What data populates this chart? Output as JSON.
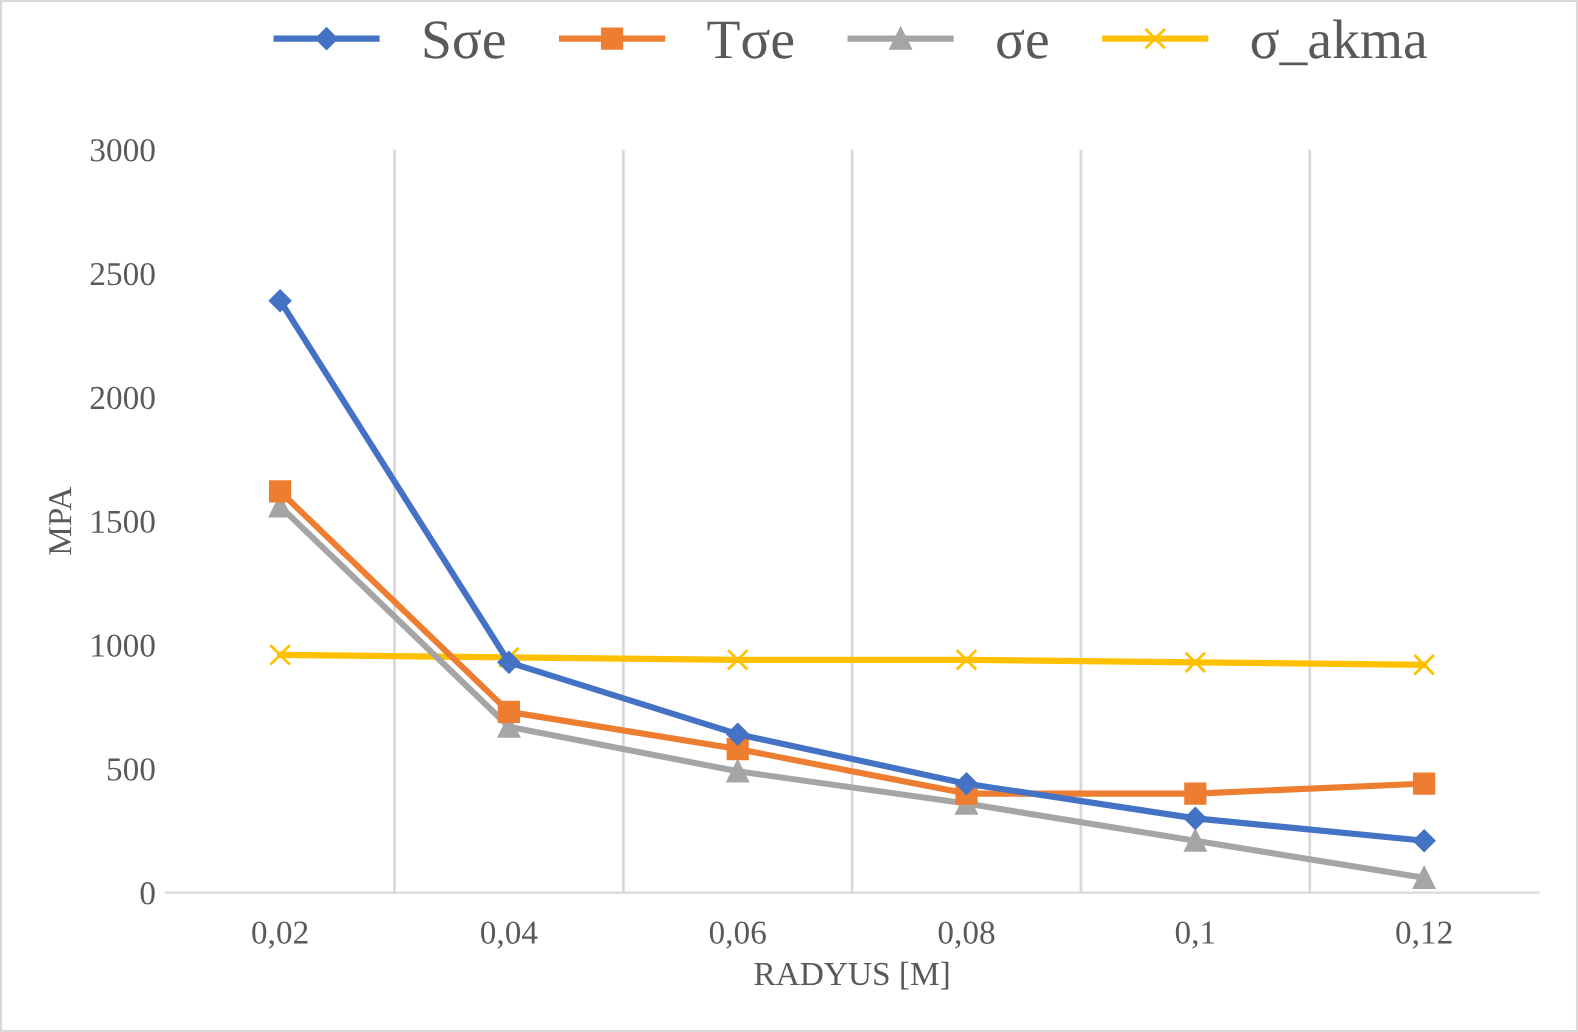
{
  "chart_data": {
    "type": "line",
    "xlabel": "RADYUS [M]",
    "ylabel": "MPA",
    "categories": [
      "0,02",
      "0,04",
      "0,06",
      "0,08",
      "0,1",
      "0,12"
    ],
    "series": [
      {
        "name": "Sσe",
        "color": "#4472c4",
        "marker": "diamond",
        "values": [
          2390,
          930,
          640,
          440,
          300,
          210
        ]
      },
      {
        "name": "Tσe",
        "color": "#ed7d31",
        "marker": "square",
        "values": [
          1620,
          730,
          580,
          400,
          400,
          440
        ]
      },
      {
        "name": "σe",
        "color": "#a5a5a5",
        "marker": "triangle",
        "values": [
          1560,
          670,
          490,
          360,
          210,
          60
        ]
      },
      {
        "name": "σ_akma",
        "color": "#ffc000",
        "marker": "cross",
        "values": [
          960,
          950,
          940,
          940,
          930,
          920
        ]
      }
    ],
    "ylim": [
      0,
      3000
    ],
    "yticks": [
      0,
      500,
      1000,
      1500,
      2000,
      2500,
      3000
    ],
    "grid": "x",
    "legend": "top",
    "line_style": "solid"
  }
}
